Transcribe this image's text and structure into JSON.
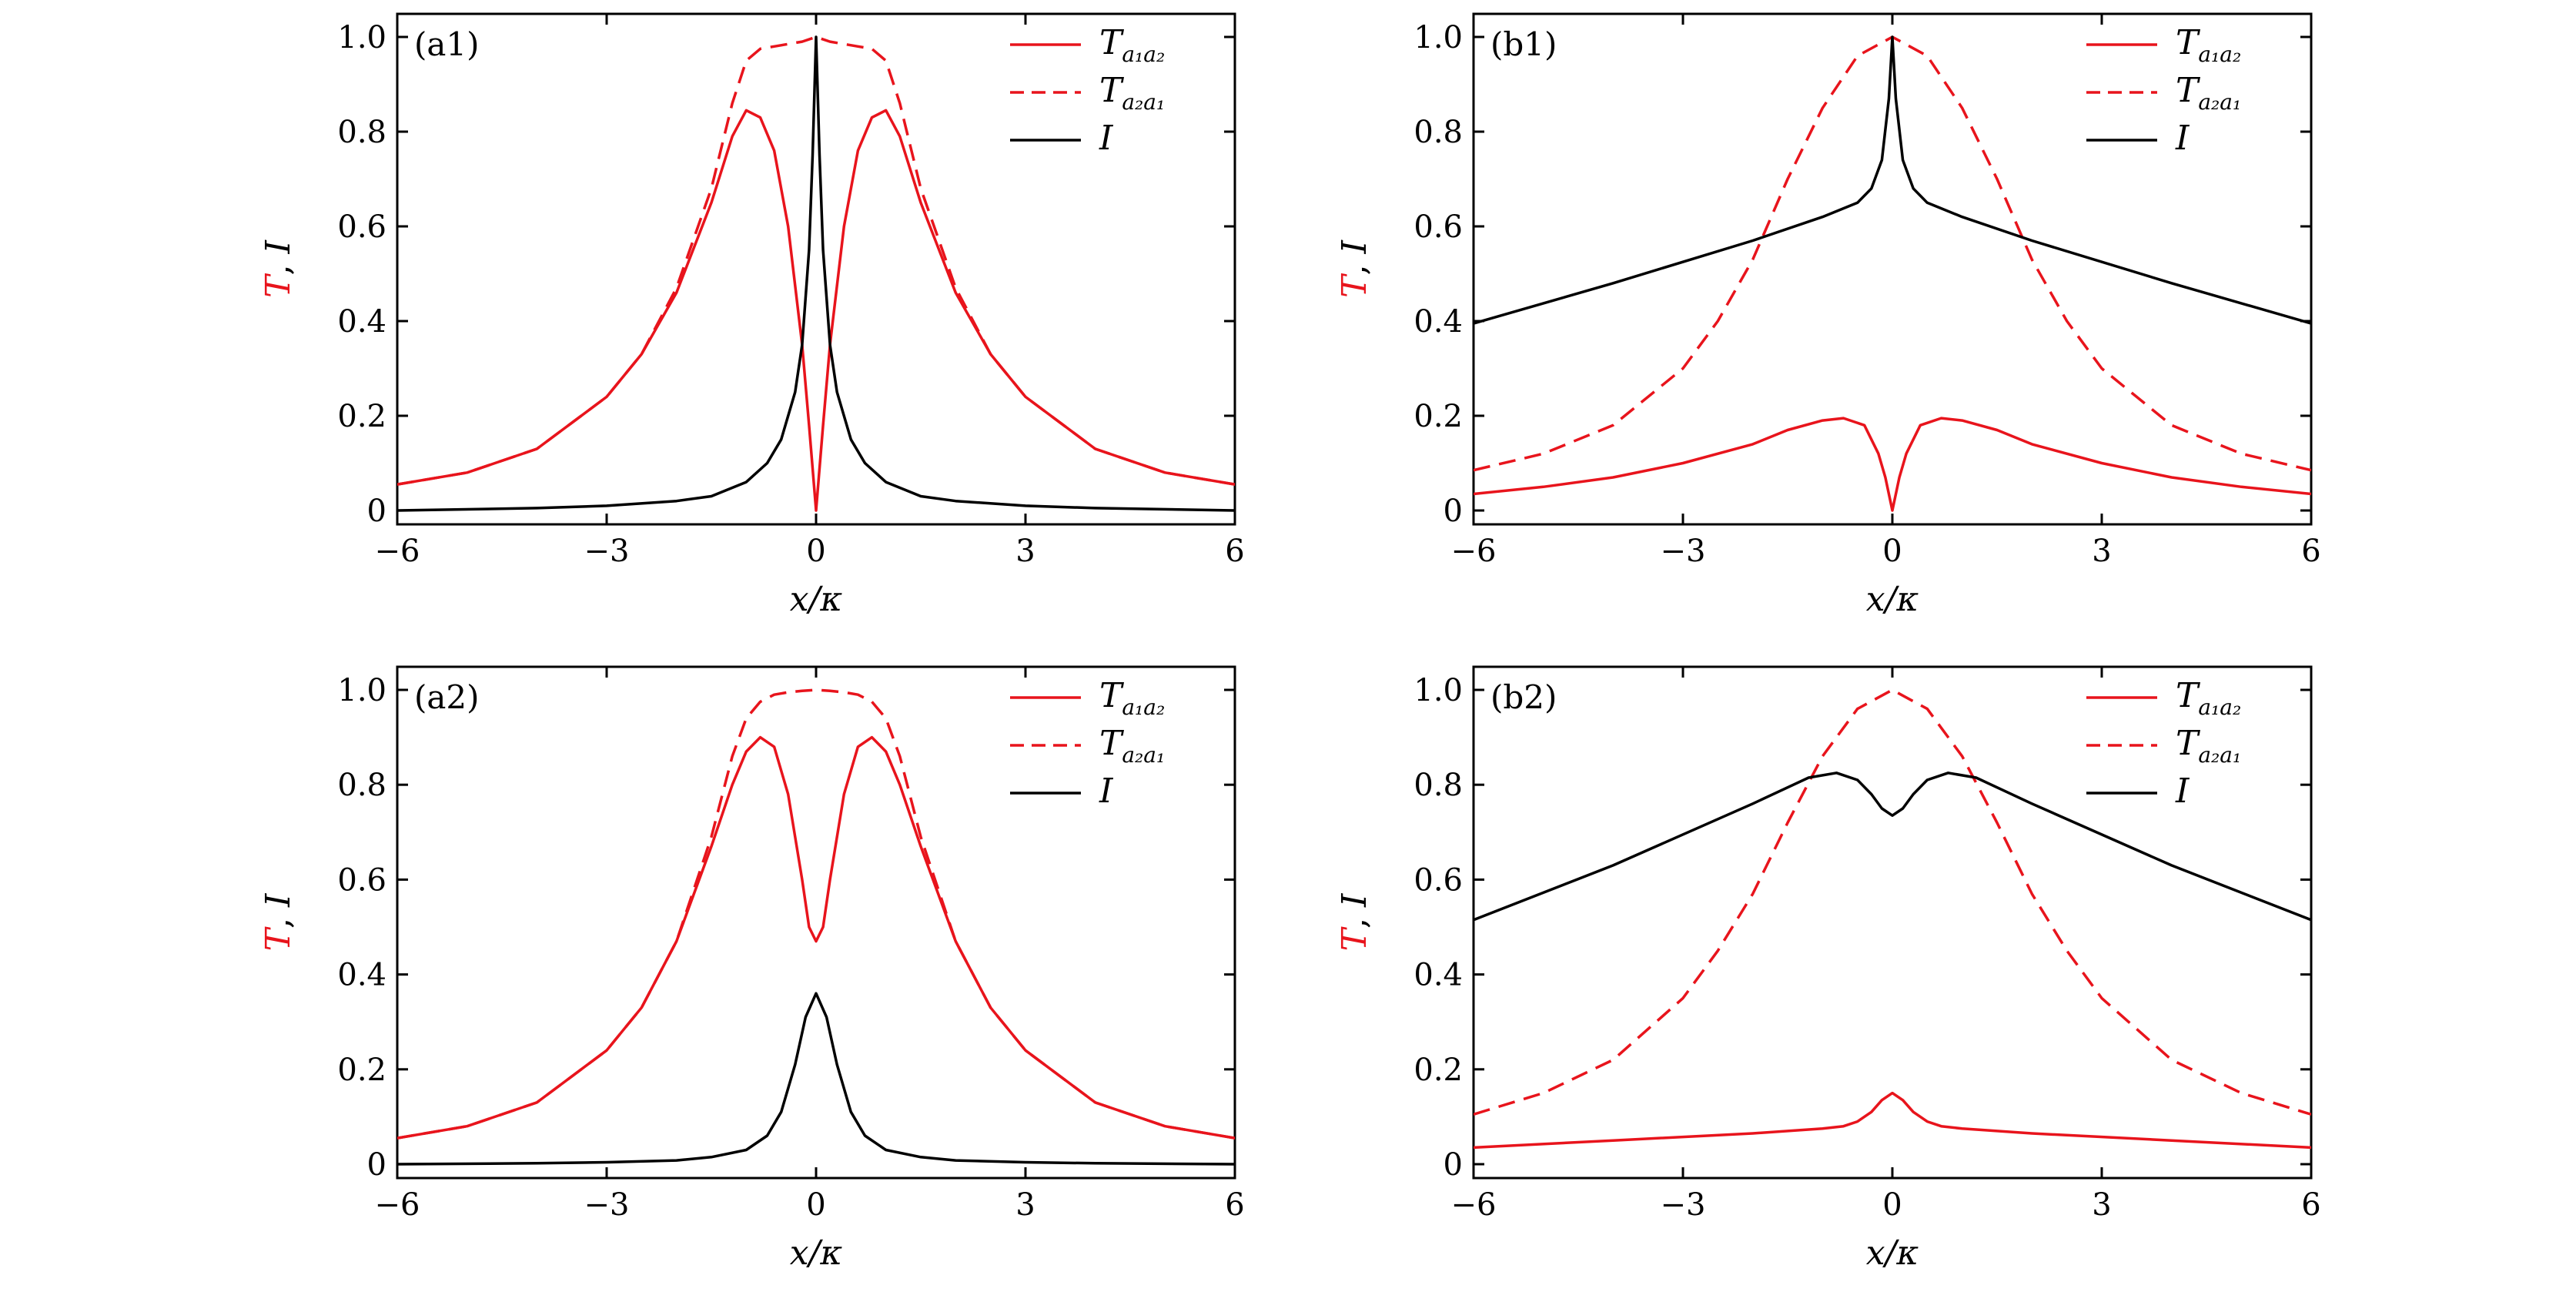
{
  "figure": {
    "colors": {
      "red": "#e8141c",
      "black": "#000000"
    }
  },
  "chart_data": [
    {
      "id": "a1",
      "panel_label": "(a1)",
      "type": "line",
      "xlabel": "x/κ",
      "ylabel_parts": [
        "T",
        ", ",
        "I"
      ],
      "xlim": [
        -6,
        6
      ],
      "ylim": [
        0,
        1.0
      ],
      "xticks": [
        -6,
        -3,
        0,
        3,
        6
      ],
      "xtick_labels": [
        "−6",
        "−3",
        "0",
        "3",
        "6"
      ],
      "yticks": [
        0,
        0.2,
        0.4,
        0.6,
        0.8,
        1.0
      ],
      "ytick_labels": [
        "0",
        "0.2",
        "0.4",
        "0.6",
        "0.8",
        "1.0"
      ],
      "legend_position": "top-right",
      "series": [
        {
          "name": "T_{a1a2}",
          "legend_main": "T",
          "legend_sub": "a₁a₂",
          "color": "#e8141c",
          "dash": "solid",
          "x": [
            -6,
            -5,
            -4,
            -3,
            -2.5,
            -2,
            -1.5,
            -1.2,
            -1,
            -0.8,
            -0.6,
            -0.4,
            -0.2,
            -0.1,
            0,
            0.1,
            0.2,
            0.4,
            0.6,
            0.8,
            1,
            1.2,
            1.5,
            2,
            2.5,
            3,
            4,
            5,
            6
          ],
          "y": [
            0.055,
            0.08,
            0.13,
            0.24,
            0.33,
            0.46,
            0.65,
            0.79,
            0.845,
            0.83,
            0.76,
            0.6,
            0.35,
            0.18,
            0,
            0.18,
            0.35,
            0.6,
            0.76,
            0.83,
            0.845,
            0.79,
            0.65,
            0.46,
            0.33,
            0.24,
            0.13,
            0.08,
            0.055
          ]
        },
        {
          "name": "T_{a2a1}",
          "legend_main": "T",
          "legend_sub": "a₂a₁",
          "color": "#e8141c",
          "dash": "dashed",
          "x": [
            -6,
            -5,
            -4,
            -3,
            -2.5,
            -2,
            -1.5,
            -1.2,
            -1,
            -0.8,
            -0.6,
            -0.4,
            -0.2,
            0,
            0.2,
            0.4,
            0.6,
            0.8,
            1,
            1.2,
            1.5,
            2,
            2.5,
            3,
            4,
            5,
            6
          ],
          "y": [
            0.055,
            0.08,
            0.13,
            0.24,
            0.33,
            0.47,
            0.68,
            0.86,
            0.95,
            0.975,
            0.98,
            0.985,
            0.99,
            1.0,
            0.99,
            0.985,
            0.98,
            0.975,
            0.95,
            0.86,
            0.68,
            0.47,
            0.33,
            0.24,
            0.13,
            0.08,
            0.055
          ]
        },
        {
          "name": "I",
          "legend_main": "I",
          "legend_sub": "",
          "color": "#000000",
          "dash": "solid",
          "x": [
            -6,
            -4,
            -3,
            -2,
            -1.5,
            -1,
            -0.7,
            -0.5,
            -0.3,
            -0.2,
            -0.1,
            -0.05,
            0,
            0.05,
            0.1,
            0.2,
            0.3,
            0.5,
            0.7,
            1,
            1.5,
            2,
            3,
            4,
            6
          ],
          "y": [
            0.0,
            0.005,
            0.01,
            0.02,
            0.03,
            0.06,
            0.1,
            0.15,
            0.25,
            0.35,
            0.55,
            0.75,
            1.0,
            0.75,
            0.55,
            0.35,
            0.25,
            0.15,
            0.1,
            0.06,
            0.03,
            0.02,
            0.01,
            0.005,
            0.0
          ]
        }
      ]
    },
    {
      "id": "b1",
      "panel_label": "(b1)",
      "type": "line",
      "xlabel": "x/κ",
      "ylabel_parts": [
        "T",
        ", ",
        "I"
      ],
      "xlim": [
        -6,
        6
      ],
      "ylim": [
        0,
        1.0
      ],
      "xticks": [
        -6,
        -3,
        0,
        3,
        6
      ],
      "xtick_labels": [
        "−6",
        "−3",
        "0",
        "3",
        "6"
      ],
      "yticks": [
        0,
        0.2,
        0.4,
        0.6,
        0.8,
        1.0
      ],
      "ytick_labels": [
        "0",
        "0.2",
        "0.4",
        "0.6",
        "0.8",
        "1.0"
      ],
      "legend_position": "top-right",
      "series": [
        {
          "name": "T_{a1a2}",
          "legend_main": "T",
          "legend_sub": "a₁a₂",
          "color": "#e8141c",
          "dash": "solid",
          "x": [
            -6,
            -5,
            -4,
            -3,
            -2,
            -1.5,
            -1,
            -0.7,
            -0.4,
            -0.2,
            -0.1,
            0,
            0.1,
            0.2,
            0.4,
            0.7,
            1,
            1.5,
            2,
            3,
            4,
            5,
            6
          ],
          "y": [
            0.035,
            0.05,
            0.07,
            0.1,
            0.14,
            0.17,
            0.19,
            0.195,
            0.18,
            0.12,
            0.07,
            0,
            0.07,
            0.12,
            0.18,
            0.195,
            0.19,
            0.17,
            0.14,
            0.1,
            0.07,
            0.05,
            0.035
          ]
        },
        {
          "name": "T_{a2a1}",
          "legend_main": "T",
          "legend_sub": "a₂a₁",
          "color": "#e8141c",
          "dash": "dashed",
          "x": [
            -6,
            -5,
            -4,
            -3,
            -2.5,
            -2,
            -1.5,
            -1,
            -0.5,
            0,
            0.5,
            1,
            1.5,
            2,
            2.5,
            3,
            4,
            5,
            6
          ],
          "y": [
            0.085,
            0.12,
            0.18,
            0.3,
            0.4,
            0.53,
            0.7,
            0.85,
            0.96,
            1.0,
            0.96,
            0.85,
            0.7,
            0.53,
            0.4,
            0.3,
            0.18,
            0.12,
            0.085
          ]
        },
        {
          "name": "I",
          "legend_main": "I",
          "legend_sub": "",
          "color": "#000000",
          "dash": "solid",
          "x": [
            -6,
            -4,
            -2,
            -1,
            -0.5,
            -0.3,
            -0.15,
            -0.05,
            0,
            0.05,
            0.15,
            0.3,
            0.5,
            1,
            2,
            4,
            6
          ],
          "y": [
            0.395,
            0.48,
            0.57,
            0.62,
            0.65,
            0.68,
            0.74,
            0.87,
            1.0,
            0.87,
            0.74,
            0.68,
            0.65,
            0.62,
            0.57,
            0.48,
            0.395
          ]
        }
      ]
    },
    {
      "id": "a2",
      "panel_label": "(a2)",
      "type": "line",
      "xlabel": "x/κ",
      "ylabel_parts": [
        "T",
        ", ",
        "I"
      ],
      "xlim": [
        -6,
        6
      ],
      "ylim": [
        0,
        1.0
      ],
      "xticks": [
        -6,
        -3,
        0,
        3,
        6
      ],
      "xtick_labels": [
        "−6",
        "−3",
        "0",
        "3",
        "6"
      ],
      "yticks": [
        0,
        0.2,
        0.4,
        0.6,
        0.8,
        1.0
      ],
      "ytick_labels": [
        "0",
        "0.2",
        "0.4",
        "0.6",
        "0.8",
        "1.0"
      ],
      "legend_position": "top-right",
      "series": [
        {
          "name": "T_{a1a2}",
          "legend_main": "T",
          "legend_sub": "a₁a₂",
          "color": "#e8141c",
          "dash": "solid",
          "x": [
            -6,
            -5,
            -4,
            -3,
            -2.5,
            -2,
            -1.5,
            -1.2,
            -1,
            -0.8,
            -0.6,
            -0.4,
            -0.2,
            -0.1,
            0,
            0.1,
            0.2,
            0.4,
            0.6,
            0.8,
            1,
            1.2,
            1.5,
            2,
            2.5,
            3,
            4,
            5,
            6
          ],
          "y": [
            0.055,
            0.08,
            0.13,
            0.24,
            0.33,
            0.47,
            0.67,
            0.8,
            0.87,
            0.9,
            0.88,
            0.78,
            0.6,
            0.5,
            0.47,
            0.5,
            0.6,
            0.78,
            0.88,
            0.9,
            0.87,
            0.8,
            0.67,
            0.47,
            0.33,
            0.24,
            0.13,
            0.08,
            0.055
          ]
        },
        {
          "name": "T_{a2a1}",
          "legend_main": "T",
          "legend_sub": "a₂a₁",
          "color": "#e8141c",
          "dash": "dashed",
          "x": [
            -6,
            -5,
            -4,
            -3,
            -2.5,
            -2,
            -1.5,
            -1.2,
            -1,
            -0.8,
            -0.6,
            -0.4,
            -0.2,
            0,
            0.2,
            0.4,
            0.6,
            0.8,
            1,
            1.2,
            1.5,
            2,
            2.5,
            3,
            4,
            5,
            6
          ],
          "y": [
            0.055,
            0.08,
            0.13,
            0.24,
            0.33,
            0.47,
            0.69,
            0.86,
            0.94,
            0.975,
            0.99,
            0.995,
            0.998,
            1.0,
            0.998,
            0.995,
            0.99,
            0.975,
            0.94,
            0.86,
            0.69,
            0.47,
            0.33,
            0.24,
            0.13,
            0.08,
            0.055
          ]
        },
        {
          "name": "I",
          "legend_main": "I",
          "legend_sub": "",
          "color": "#000000",
          "dash": "solid",
          "x": [
            -6,
            -4,
            -3,
            -2,
            -1.5,
            -1,
            -0.7,
            -0.5,
            -0.3,
            -0.15,
            0,
            0.15,
            0.3,
            0.5,
            0.7,
            1,
            1.5,
            2,
            3,
            4,
            6
          ],
          "y": [
            0.0,
            0.002,
            0.004,
            0.008,
            0.015,
            0.03,
            0.06,
            0.11,
            0.21,
            0.31,
            0.36,
            0.31,
            0.21,
            0.11,
            0.06,
            0.03,
            0.015,
            0.008,
            0.004,
            0.002,
            0.0
          ]
        }
      ]
    },
    {
      "id": "b2",
      "panel_label": "(b2)",
      "type": "line",
      "xlabel": "x/κ",
      "ylabel_parts": [
        "T",
        ", ",
        "I"
      ],
      "xlim": [
        -6,
        6
      ],
      "ylim": [
        0,
        1.0
      ],
      "xticks": [
        -6,
        -3,
        0,
        3,
        6
      ],
      "xtick_labels": [
        "−6",
        "−3",
        "0",
        "3",
        "6"
      ],
      "yticks": [
        0,
        0.2,
        0.4,
        0.6,
        0.8,
        1.0
      ],
      "ytick_labels": [
        "0",
        "0.2",
        "0.4",
        "0.6",
        "0.8",
        "1.0"
      ],
      "legend_position": "top-right",
      "series": [
        {
          "name": "T_{a1a2}",
          "legend_main": "T",
          "legend_sub": "a₁a₂",
          "color": "#e8141c",
          "dash": "solid",
          "x": [
            -6,
            -4,
            -2,
            -1,
            -0.7,
            -0.5,
            -0.3,
            -0.15,
            0,
            0.15,
            0.3,
            0.5,
            0.7,
            1,
            2,
            4,
            6
          ],
          "y": [
            0.035,
            0.05,
            0.065,
            0.075,
            0.08,
            0.09,
            0.11,
            0.135,
            0.15,
            0.135,
            0.11,
            0.09,
            0.08,
            0.075,
            0.065,
            0.05,
            0.035
          ]
        },
        {
          "name": "T_{a2a1}",
          "legend_main": "T",
          "legend_sub": "a₂a₁",
          "color": "#e8141c",
          "dash": "dashed",
          "x": [
            -6,
            -5,
            -4,
            -3,
            -2.5,
            -2,
            -1.5,
            -1,
            -0.5,
            0,
            0.5,
            1,
            1.5,
            2,
            2.5,
            3,
            4,
            5,
            6
          ],
          "y": [
            0.105,
            0.15,
            0.22,
            0.35,
            0.45,
            0.57,
            0.72,
            0.86,
            0.96,
            1.0,
            0.96,
            0.86,
            0.72,
            0.57,
            0.45,
            0.35,
            0.22,
            0.15,
            0.105
          ]
        },
        {
          "name": "I",
          "legend_main": "I",
          "legend_sub": "",
          "color": "#000000",
          "dash": "solid",
          "x": [
            -6,
            -4,
            -2,
            -1.2,
            -0.8,
            -0.5,
            -0.3,
            -0.15,
            0,
            0.15,
            0.3,
            0.5,
            0.8,
            1.2,
            2,
            4,
            6
          ],
          "y": [
            0.515,
            0.63,
            0.76,
            0.815,
            0.825,
            0.81,
            0.78,
            0.75,
            0.735,
            0.75,
            0.78,
            0.81,
            0.825,
            0.815,
            0.76,
            0.63,
            0.515
          ]
        }
      ]
    }
  ]
}
